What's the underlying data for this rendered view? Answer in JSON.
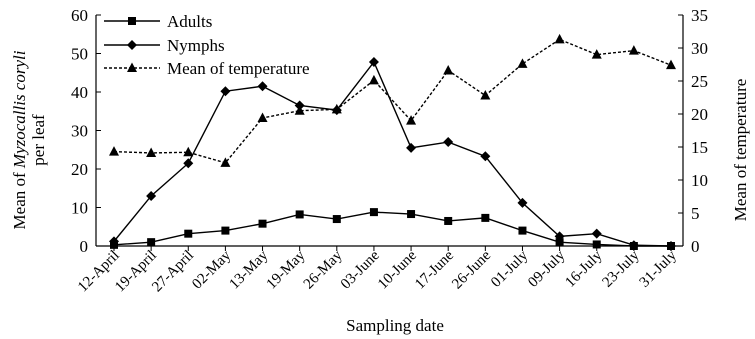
{
  "chart_data": {
    "type": "line",
    "xlabel": "Sampling date",
    "ylabel_left_line1_prefix": "Mean of ",
    "ylabel_left_line1_italic": "Myzocallis coryli",
    "ylabel_left_line2": "per leaf",
    "ylabel_right": "Mean of temperature",
    "categories": [
      "12-April",
      "19-April",
      "27-April",
      "02-May",
      "13-May",
      "19-May",
      "26-May",
      "03-June",
      "10-June",
      "17-June",
      "26-June",
      "01-July",
      "09-July",
      "16-July",
      "23-July",
      "31-July"
    ],
    "ylim_left": [
      0,
      60
    ],
    "yticks_left": [
      "0",
      "10",
      "20",
      "30",
      "40",
      "50",
      "60"
    ],
    "ylim_right": [
      0,
      35
    ],
    "yticks_right": [
      "0",
      "5",
      "10",
      "15",
      "20",
      "25",
      "30",
      "35"
    ],
    "series": [
      {
        "name": "Adults",
        "axis": "left",
        "marker": "square",
        "dash": "solid",
        "values": [
          0.3,
          1,
          3.2,
          4,
          5.8,
          8.2,
          7,
          8.8,
          8.3,
          6.5,
          7.3,
          4,
          1,
          0.4,
          0,
          0
        ]
      },
      {
        "name": "Nymphs",
        "axis": "left",
        "marker": "diamond",
        "dash": "solid",
        "values": [
          1.2,
          13,
          21.5,
          40.2,
          41.5,
          36.5,
          35.3,
          47.8,
          25.5,
          27,
          23.3,
          11.2,
          2.5,
          3.2,
          0.2,
          0
        ]
      },
      {
        "name": "Mean of temperature",
        "axis": "right",
        "marker": "triangle",
        "dash": "dotted",
        "values": [
          14.3,
          14.1,
          14.2,
          12.6,
          19.4,
          20.5,
          20.7,
          25.1,
          19,
          26.6,
          22.8,
          27.6,
          31.3,
          29,
          29.6,
          27.4
        ]
      }
    ],
    "legend_position": "top-left",
    "grid": false
  }
}
